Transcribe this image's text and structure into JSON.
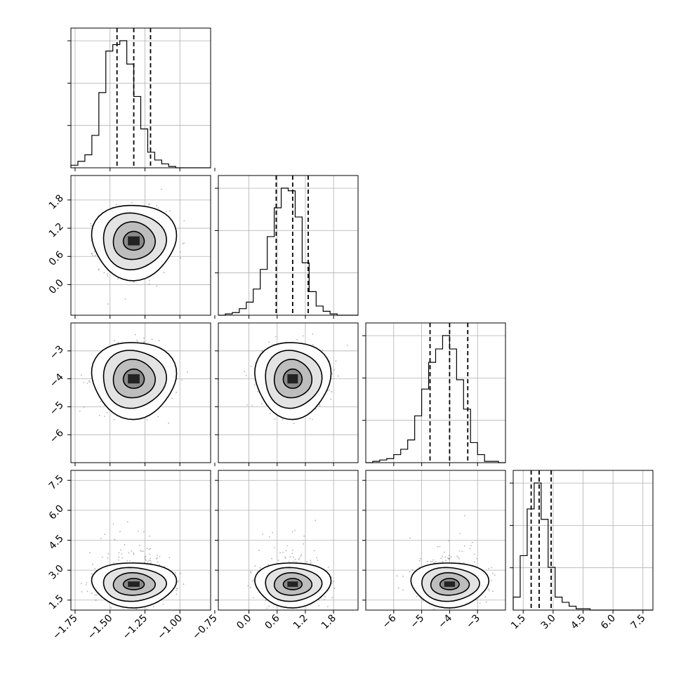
{
  "chart_data": {
    "type": "corner",
    "title": "",
    "grid": true,
    "n_params": 4,
    "params": [
      {
        "label": "",
        "range": [
          -1.78,
          -0.78
        ],
        "ticks": [
          -1.75,
          -1.5,
          -1.25,
          -1.0,
          -0.75
        ],
        "tick_labels": [
          "−1.75",
          "−1.50",
          "−1.25",
          "−1.00",
          "−0.75"
        ],
        "quantiles": [
          -1.45,
          -1.33,
          -1.21
        ]
      },
      {
        "label": "",
        "range": [
          -0.65,
          2.32
        ],
        "ticks": [
          0.0,
          0.6,
          1.2,
          1.8
        ],
        "tick_labels": [
          "0.0",
          "0.6",
          "1.2",
          "1.8"
        ],
        "quantiles": [
          0.58,
          0.93,
          1.26
        ]
      },
      {
        "label": "",
        "range": [
          -7.0,
          -2.0
        ],
        "ticks": [
          -6,
          -5,
          -4,
          -3
        ],
        "tick_labels": [
          "−6",
          "−5",
          "−4",
          "−3"
        ],
        "quantiles": [
          -4.7,
          -4.0,
          -3.35
        ]
      },
      {
        "label": "",
        "range": [
          1.0,
          8.0
        ],
        "ticks": [
          1.5,
          3.0,
          4.5,
          6.0,
          7.5
        ],
        "tick_labels": [
          "1.5",
          "3.0",
          "4.5",
          "6.0",
          "7.5"
        ],
        "quantiles": [
          1.9,
          2.3,
          2.9
        ]
      }
    ],
    "histograms": [
      {
        "param": 0,
        "edges_start": -1.78,
        "bin_width": 0.05,
        "counts": [
          2,
          5,
          10,
          25,
          58,
          90,
          95,
          98,
          80,
          55,
          30,
          12,
          6,
          3,
          1,
          0,
          0,
          0,
          0,
          0
        ]
      },
      {
        "param": 1,
        "edges_start": -0.65,
        "bin_width": 0.1485,
        "counts": [
          0,
          1,
          2,
          5,
          10,
          20,
          35,
          60,
          82,
          97,
          95,
          75,
          40,
          18,
          7,
          3,
          1,
          0,
          0,
          0
        ]
      },
      {
        "param": 2,
        "edges_start": -7.0,
        "bin_width": 0.25,
        "counts": [
          0,
          1,
          2,
          3,
          6,
          10,
          17,
          35,
          55,
          75,
          85,
          95,
          85,
          62,
          40,
          15,
          6,
          1,
          1,
          0
        ]
      },
      {
        "param": 3,
        "edges_start": 1.0,
        "bin_width": 0.35,
        "counts": [
          10,
          42,
          78,
          98,
          70,
          33,
          10,
          6,
          3,
          1,
          1,
          0,
          0,
          0,
          0,
          0,
          0,
          0,
          0,
          0
        ]
      }
    ],
    "joint_stats": [
      {
        "x": 0,
        "y": 1,
        "mx": -1.33,
        "my": 0.93,
        "sx": 0.12,
        "sy": 0.32,
        "skew_up": false
      },
      {
        "x": 0,
        "y": 2,
        "mx": -1.33,
        "my": -4.0,
        "sx": 0.12,
        "sy": 0.55,
        "skew_up": false
      },
      {
        "x": 1,
        "y": 2,
        "mx": 0.93,
        "my": -4.0,
        "sx": 0.32,
        "sy": 0.55,
        "skew_up": false
      },
      {
        "x": 0,
        "y": 3,
        "mx": -1.33,
        "my": 2.3,
        "sx": 0.12,
        "sy": 0.45,
        "skew_up": true
      },
      {
        "x": 1,
        "y": 3,
        "mx": 0.93,
        "my": 2.3,
        "sx": 0.32,
        "sy": 0.45,
        "skew_up": true
      },
      {
        "x": 2,
        "y": 3,
        "mx": -4.0,
        "my": 2.3,
        "sx": 0.55,
        "sy": 0.45,
        "skew_up": true
      }
    ],
    "contour_levels_sigma": [
      0.5,
      1.0,
      1.5,
      2.0
    ]
  }
}
